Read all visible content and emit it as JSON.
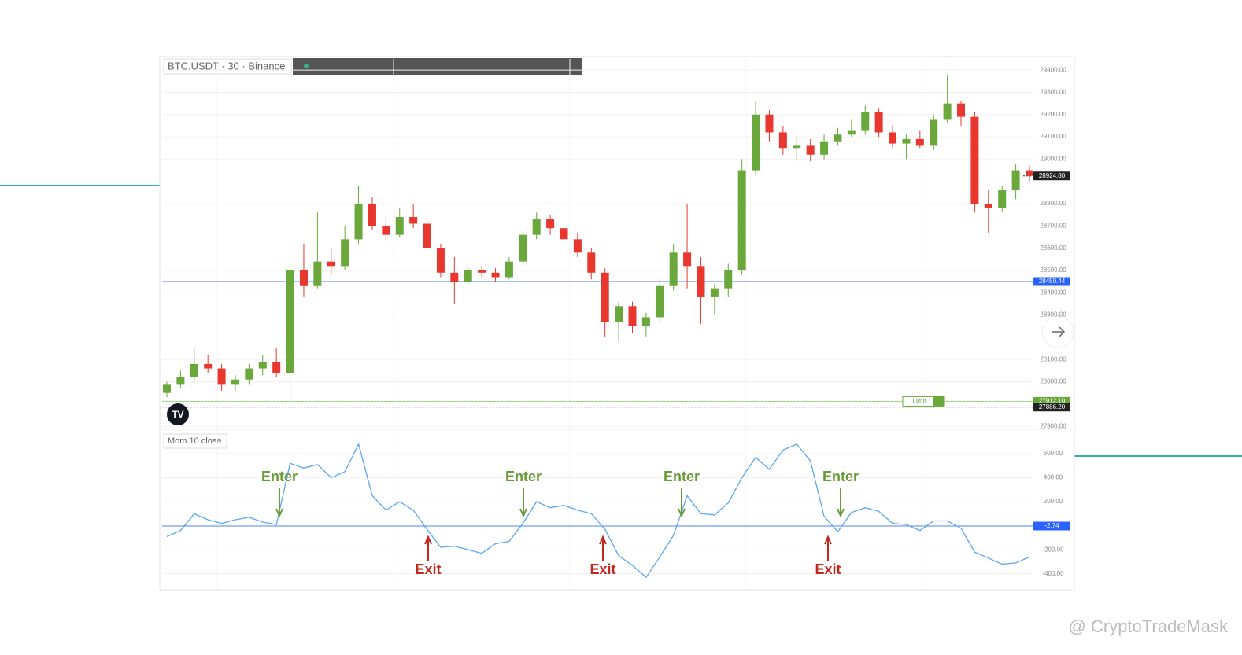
{
  "chart_data": [
    {
      "type": "candlestick",
      "title": "BTC.USDT · 30 · Binance",
      "open": [
        27950,
        27990,
        28020,
        28080,
        28060,
        27990,
        28010,
        28060,
        28090,
        28040,
        28500,
        28430,
        28540,
        28520,
        28640,
        28800,
        28700,
        28660,
        28740,
        28710,
        28600,
        28490,
        28450,
        28500,
        28490,
        28470,
        28540,
        28660,
        28730,
        28690,
        28640,
        28580,
        28490,
        28270,
        28340,
        28250,
        28290,
        28430,
        28580,
        28520,
        28380,
        28420,
        28500,
        28950,
        29200,
        29120,
        29050,
        29060,
        29020,
        29080,
        29110,
        29130,
        29210,
        29120,
        29070,
        29090,
        29060,
        29180,
        29250,
        29190,
        28800,
        28780,
        28860,
        28950
      ],
      "high": [
        28000,
        28050,
        28150,
        28120,
        28080,
        28030,
        28080,
        28120,
        28150,
        28530,
        28620,
        28760,
        28600,
        28700,
        28880,
        28830,
        28740,
        28780,
        28800,
        28730,
        28620,
        28560,
        28520,
        28520,
        28510,
        28560,
        28680,
        28760,
        28750,
        28710,
        28670,
        28600,
        28510,
        28360,
        28360,
        28310,
        28460,
        28620,
        28800,
        28560,
        28440,
        28530,
        29000,
        29260,
        29220,
        29150,
        29100,
        29090,
        29110,
        29140,
        29180,
        29240,
        29230,
        29150,
        29110,
        29130,
        29200,
        29380,
        29260,
        29210,
        28860,
        28880,
        28980,
        28970
      ],
      "low": [
        27930,
        27970,
        28000,
        28040,
        27960,
        27960,
        27990,
        28030,
        28020,
        27900,
        28380,
        28420,
        28480,
        28500,
        28620,
        28680,
        28630,
        28650,
        28690,
        28580,
        28470,
        28350,
        28440,
        28470,
        28450,
        28460,
        28520,
        28640,
        28660,
        28620,
        28560,
        28460,
        28200,
        28180,
        28220,
        28200,
        28270,
        28410,
        28420,
        28260,
        28300,
        28380,
        28480,
        28930,
        29080,
        29020,
        28990,
        28990,
        29000,
        29060,
        29100,
        29110,
        29100,
        29050,
        29000,
        29050,
        29040,
        29160,
        29150,
        28760,
        28670,
        28760,
        28820,
        28900
      ],
      "close": [
        27990,
        28020,
        28080,
        28060,
        27990,
        28010,
        28060,
        28090,
        28040,
        28500,
        28430,
        28540,
        28520,
        28640,
        28800,
        28700,
        28660,
        28740,
        28710,
        28600,
        28490,
        28450,
        28500,
        28490,
        28470,
        28540,
        28660,
        28730,
        28690,
        28640,
        28580,
        28490,
        28270,
        28340,
        28250,
        28290,
        28430,
        28580,
        28520,
        28380,
        28420,
        28500,
        28950,
        29200,
        29120,
        29050,
        29060,
        29020,
        29080,
        29110,
        29130,
        29210,
        29120,
        29070,
        29090,
        29060,
        29180,
        29250,
        29190,
        28800,
        28780,
        28860,
        28950,
        28924.8
      ],
      "up_color": "#6aa83c",
      "down_color": "#e8372f",
      "ylim": [
        27790,
        29450
      ],
      "yticks": [
        {
          "value": 27800,
          "label": "27800.00"
        },
        {
          "value": 28000,
          "label": "28000.00"
        },
        {
          "value": 28100,
          "label": "28100.00"
        },
        {
          "value": 28300,
          "label": "28300.00"
        },
        {
          "value": 28400,
          "label": "28400.00"
        },
        {
          "value": 28500,
          "label": "28500.00"
        },
        {
          "value": 28600,
          "label": "28600.00"
        },
        {
          "value": 28700,
          "label": "28700.00"
        },
        {
          "value": 28800,
          "label": "28800.00"
        },
        {
          "value": 29000,
          "label": "29000.00"
        },
        {
          "value": 29100,
          "label": "29100.00"
        },
        {
          "value": 29200,
          "label": "29200.00"
        },
        {
          "value": 29300,
          "label": "29300.00"
        },
        {
          "value": 29400,
          "label": "29400.00"
        }
      ],
      "price_lines": [
        {
          "value": 28924.8,
          "label": "28924.80",
          "color": "#222222"
        },
        {
          "value": 28450.44,
          "label": "28450.44",
          "color": "#2962ff"
        },
        {
          "value": 27912.1,
          "label": "27912.10",
          "color": "#6aa83c"
        },
        {
          "value": 27886.2,
          "label": "27886.20",
          "color": "#222222"
        }
      ],
      "order_label": "Limit"
    },
    {
      "type": "line",
      "title": "Mom 10 close",
      "series": [
        {
          "name": "Mom 10 close",
          "color": "#5aa6f0",
          "values": [
            -90,
            -40,
            100,
            50,
            20,
            50,
            70,
            30,
            10,
            520,
            480,
            510,
            400,
            450,
            680,
            250,
            130,
            200,
            130,
            -30,
            -180,
            -170,
            -200,
            -230,
            -150,
            -130,
            20,
            200,
            150,
            170,
            130,
            100,
            -30,
            -250,
            -330,
            -430,
            -260,
            -80,
            250,
            100,
            90,
            190,
            400,
            570,
            470,
            630,
            680,
            540,
            80,
            -50,
            110,
            150,
            120,
            20,
            10,
            -40,
            40,
            40,
            -20,
            -220,
            -270,
            -320,
            -310,
            -260
          ]
        }
      ],
      "ylim": [
        -520,
        790
      ],
      "yticks": [
        {
          "value": -400,
          "label": "-400.00"
        },
        {
          "value": -200,
          "label": "-200.00"
        },
        {
          "value": 200,
          "label": "200.00"
        },
        {
          "value": 400,
          "label": "400.00"
        },
        {
          "value": 600,
          "label": "600.00"
        }
      ],
      "zero_line": {
        "value": -2.74,
        "label": "-2.74",
        "color": "#2962ff"
      },
      "annotations": {
        "enter": [
          "Enter",
          "Enter",
          "Enter",
          "Enter"
        ],
        "exit": [
          "Exit",
          "Exit",
          "Exit"
        ]
      }
    }
  ],
  "watermark": "@ CryptoTradeMask"
}
